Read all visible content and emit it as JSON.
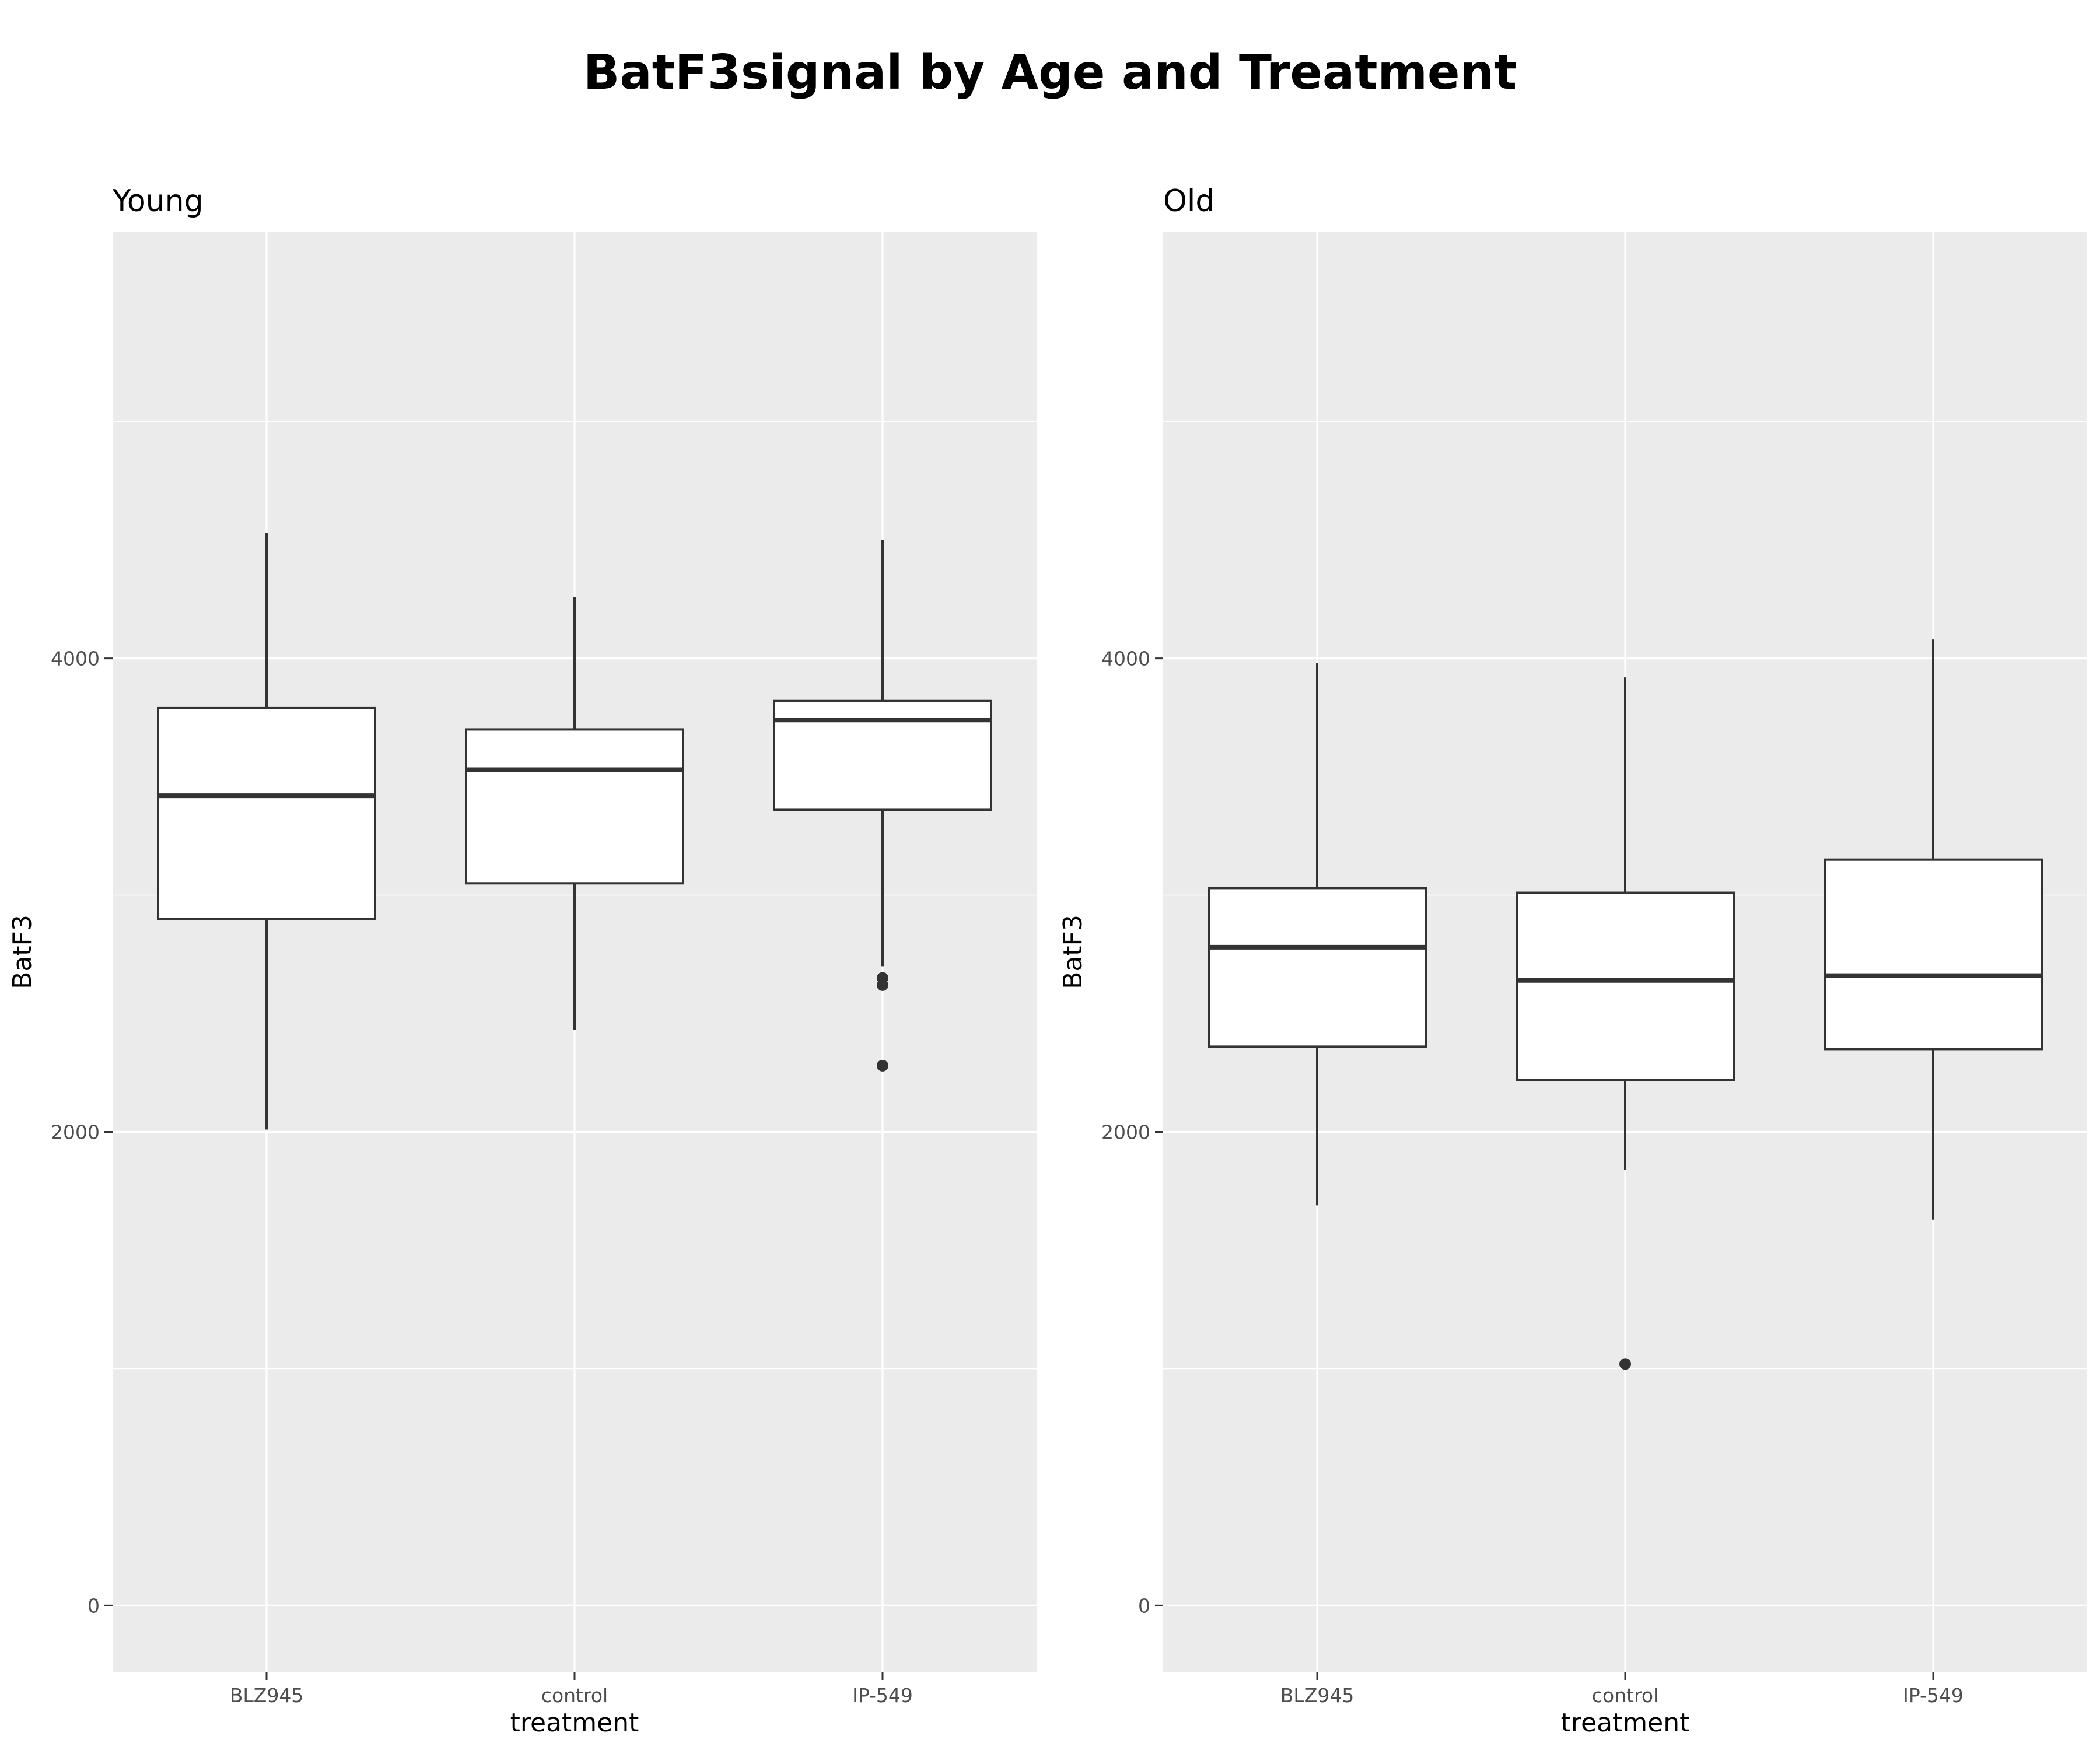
{
  "chart_data": {
    "type": "boxplot",
    "title": "BatF3signal by Age and Treatment",
    "xlabel": "treatment",
    "ylabel": "BatF3",
    "categories": [
      "BLZ945",
      "control",
      "IP-549"
    ],
    "ylim": [
      -280,
      5800
    ],
    "yticks": [
      0,
      2000,
      4000
    ],
    "yminor": [
      1000,
      3000,
      5000
    ],
    "grid": true,
    "legend": "none",
    "panels": [
      {
        "name": "Young",
        "boxes": [
          {
            "category": "BLZ945",
            "q1": 2900,
            "median": 3420,
            "q3": 3790,
            "whisker_low": 2010,
            "whisker_high": 4530,
            "outliers": []
          },
          {
            "category": "control",
            "q1": 3050,
            "median": 3530,
            "q3": 3700,
            "whisker_low": 2430,
            "whisker_high": 4260,
            "outliers": []
          },
          {
            "category": "IP-549",
            "q1": 3360,
            "median": 3740,
            "q3": 3820,
            "whisker_low": 2700,
            "whisker_high": 4500,
            "outliers": [
              2650,
              2620,
              2280
            ]
          }
        ]
      },
      {
        "name": "Old",
        "boxes": [
          {
            "category": "BLZ945",
            "q1": 2360,
            "median": 2780,
            "q3": 3030,
            "whisker_low": 1690,
            "whisker_high": 3980,
            "outliers": []
          },
          {
            "category": "control",
            "q1": 2220,
            "median": 2640,
            "q3": 3010,
            "whisker_low": 1840,
            "whisker_high": 3920,
            "outliers": [
              1020
            ]
          },
          {
            "category": "IP-549",
            "q1": 2350,
            "median": 2660,
            "q3": 3150,
            "whisker_low": 1630,
            "whisker_high": 4080,
            "outliers": []
          }
        ]
      }
    ]
  }
}
